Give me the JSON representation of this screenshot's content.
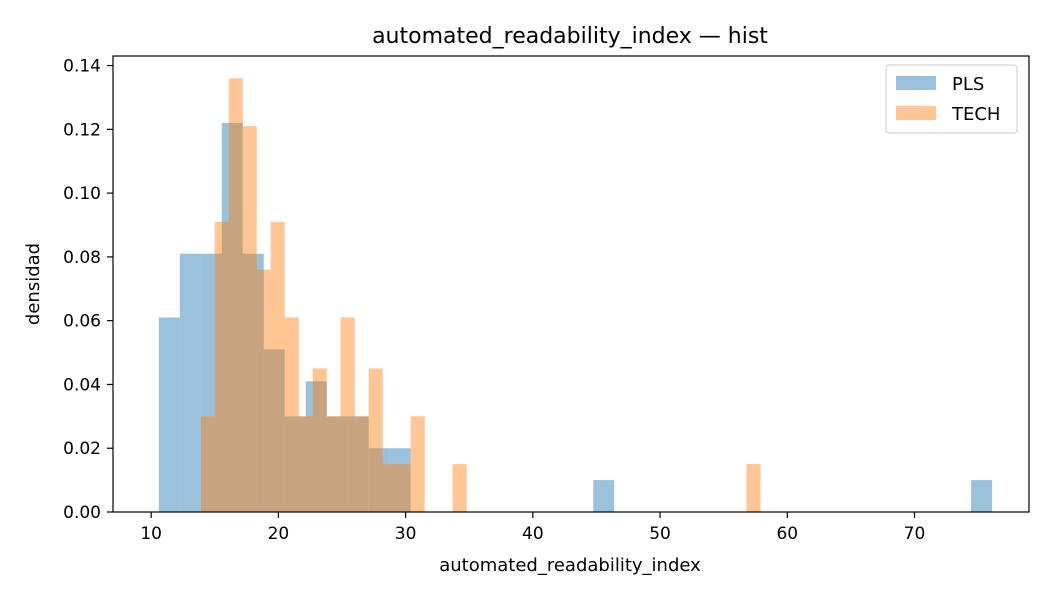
{
  "chart_data": {
    "type": "bar",
    "title": "automated_readability_index — hist",
    "xlabel": "automated_readability_index",
    "ylabel": "densidad",
    "xlim": [
      7,
      79
    ],
    "ylim": [
      0,
      0.143
    ],
    "xticks": [
      10,
      20,
      30,
      40,
      50,
      60,
      70
    ],
    "yticks": [
      0.0,
      0.02,
      0.04,
      0.06,
      0.08,
      0.1,
      0.12,
      0.14
    ],
    "legend_position": "top-right",
    "grid": false,
    "series": [
      {
        "name": "PLS",
        "color": "#1f77b4",
        "opacity": 0.45,
        "bins": [
          [
            10.6,
            12.25,
            0.061
          ],
          [
            12.25,
            13.9,
            0.081
          ],
          [
            13.9,
            15.55,
            0.081
          ],
          [
            15.55,
            17.2,
            0.122
          ],
          [
            17.2,
            18.85,
            0.081
          ],
          [
            18.85,
            20.5,
            0.051
          ],
          [
            20.5,
            22.15,
            0.03
          ],
          [
            22.15,
            23.8,
            0.041
          ],
          [
            23.8,
            25.45,
            0.03
          ],
          [
            25.45,
            27.1,
            0.03
          ],
          [
            27.1,
            28.75,
            0.02
          ],
          [
            28.75,
            30.4,
            0.02
          ],
          [
            44.75,
            46.4,
            0.01
          ],
          [
            74.45,
            76.1,
            0.01
          ]
        ]
      },
      {
        "name": "TECH",
        "color": "#ff7f0e",
        "opacity": 0.45,
        "bins": [
          [
            13.9,
            15.0,
            0.03
          ],
          [
            15.0,
            16.1,
            0.091
          ],
          [
            16.1,
            17.2,
            0.136
          ],
          [
            17.2,
            18.3,
            0.121
          ],
          [
            18.3,
            19.4,
            0.076
          ],
          [
            19.4,
            20.5,
            0.091
          ],
          [
            20.5,
            21.6,
            0.061
          ],
          [
            21.6,
            22.7,
            0.03
          ],
          [
            22.7,
            23.8,
            0.045
          ],
          [
            23.8,
            24.9,
            0.03
          ],
          [
            24.9,
            26.0,
            0.061
          ],
          [
            26.0,
            27.1,
            0.03
          ],
          [
            27.1,
            28.2,
            0.045
          ],
          [
            28.2,
            29.3,
            0.015
          ],
          [
            29.3,
            30.4,
            0.015
          ],
          [
            30.4,
            31.5,
            0.03
          ],
          [
            33.7,
            34.8,
            0.015
          ],
          [
            56.8,
            57.9,
            0.015
          ]
        ]
      }
    ]
  }
}
